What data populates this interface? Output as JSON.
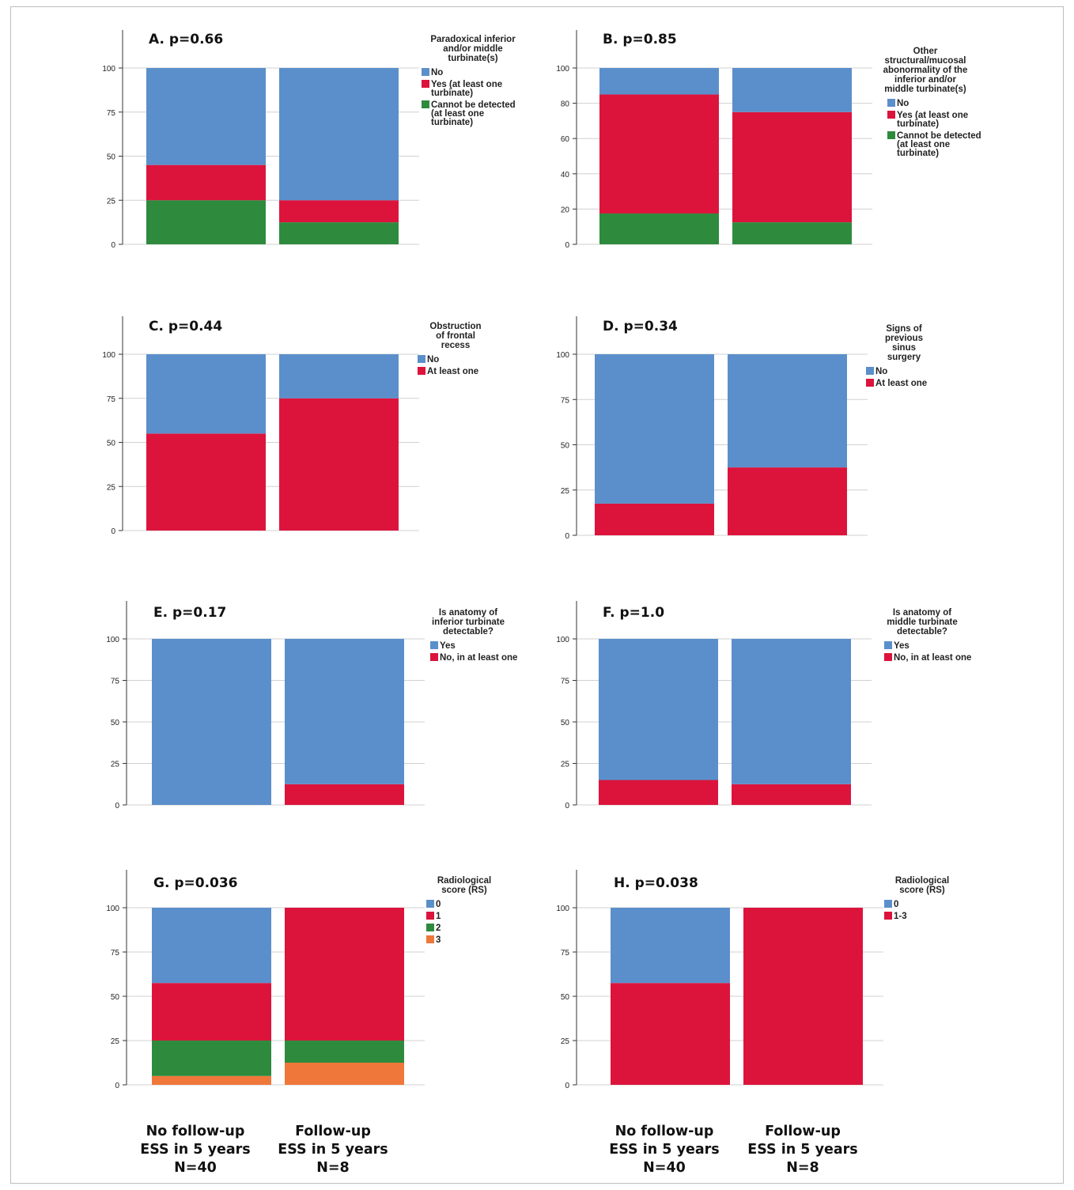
{
  "colors": {
    "blue": "#5b8fcb",
    "red": "#dc143c",
    "green": "#2e8b3e",
    "orange": "#f0773a",
    "grid": "#d0d0d0"
  },
  "categories": [
    {
      "lines": [
        "No follow-up",
        "ESS in 5 years",
        "N=40"
      ]
    },
    {
      "lines": [
        "Follow-up",
        "ESS in 5 years",
        "N=8"
      ]
    }
  ],
  "chart_data": [
    {
      "type": "bar",
      "stacked": true,
      "title": "A. p=0.66",
      "legend_title": [
        "Paradoxical inferior",
        "and/or middle",
        "turbinate(s)"
      ],
      "ylim": [
        0,
        100
      ],
      "yticks": [
        0,
        25,
        50,
        75,
        100
      ],
      "categories": [
        "No follow-up ESS in 5 years N=40",
        "Follow-up ESS in 5 years N=8"
      ],
      "series": [
        {
          "name": "No",
          "legend_lines": [
            "No"
          ],
          "color": "blue",
          "values": [
            55,
            75
          ]
        },
        {
          "name": "Yes (at least one turbinate)",
          "legend_lines": [
            "Yes (at least one",
            "turbinate)"
          ],
          "color": "red",
          "values": [
            20,
            12.5
          ]
        },
        {
          "name": "Cannot be detected (at least one turbinate)",
          "legend_lines": [
            "Cannot be detected",
            "(at least one",
            "turbinate)"
          ],
          "color": "green",
          "values": [
            25,
            12.5
          ]
        }
      ]
    },
    {
      "type": "bar",
      "stacked": true,
      "title": "B. p=0.85",
      "legend_title": [
        "Other",
        "structural/mucosal",
        "abonormality of the",
        "inferior and/or",
        "middle turbinate(s)"
      ],
      "ylim": [
        0,
        100
      ],
      "yticks": [
        0,
        20,
        40,
        60,
        80,
        100
      ],
      "categories": [
        "No follow-up ESS in 5 years N=40",
        "Follow-up ESS in 5 years N=8"
      ],
      "series": [
        {
          "name": "No",
          "legend_lines": [
            "No"
          ],
          "color": "blue",
          "values": [
            15,
            25
          ]
        },
        {
          "name": "Yes (at least one turbinate)",
          "legend_lines": [
            "Yes (at least one",
            "turbinate)"
          ],
          "color": "red",
          "values": [
            67.5,
            62.5
          ]
        },
        {
          "name": "Cannot be detected (at least one turbinate)",
          "legend_lines": [
            "Cannot be detected",
            "(at least one",
            "turbinate)"
          ],
          "color": "green",
          "values": [
            17.5,
            12.5
          ]
        }
      ]
    },
    {
      "type": "bar",
      "stacked": true,
      "title": "C. p=0.44",
      "legend_title": [
        "Obstruction",
        "of frontal",
        "recess"
      ],
      "ylim": [
        0,
        100
      ],
      "yticks": [
        0,
        25,
        50,
        75,
        100
      ],
      "categories": [
        "No follow-up ESS in 5 years N=40",
        "Follow-up ESS in 5 years N=8"
      ],
      "series": [
        {
          "name": "No",
          "legend_lines": [
            "No"
          ],
          "color": "blue",
          "values": [
            45,
            25
          ]
        },
        {
          "name": "At least one",
          "legend_lines": [
            "At least one"
          ],
          "color": "red",
          "values": [
            55,
            75
          ]
        }
      ]
    },
    {
      "type": "bar",
      "stacked": true,
      "title": "D. p=0.34",
      "legend_title": [
        "Signs of",
        "previous",
        "sinus",
        "surgery"
      ],
      "ylim": [
        0,
        110
      ],
      "yticks": [
        0,
        25,
        50,
        75,
        100
      ],
      "categories": [
        "No follow-up ESS in 5 years N=40",
        "Follow-up ESS in 5 years N=8"
      ],
      "series": [
        {
          "name": "No",
          "legend_lines": [
            "No"
          ],
          "color": "blue",
          "values": [
            82.5,
            62.5
          ]
        },
        {
          "name": "At least one",
          "legend_lines": [
            "At least one"
          ],
          "color": "red",
          "values": [
            17.5,
            37.5
          ]
        }
      ]
    },
    {
      "type": "bar",
      "stacked": true,
      "title": "E. p=0.17",
      "legend_title": [
        "Is anatomy of",
        "inferior turbinate",
        "detectable?"
      ],
      "ylim": [
        0,
        100
      ],
      "yticks": [
        0,
        25,
        50,
        75,
        100
      ],
      "categories": [
        "No follow-up ESS in 5 years N=40",
        "Follow-up ESS in 5 years N=8"
      ],
      "series": [
        {
          "name": "Yes",
          "legend_lines": [
            "Yes"
          ],
          "color": "blue",
          "values": [
            100,
            87.5
          ]
        },
        {
          "name": "No, in at least one",
          "legend_lines": [
            "No, in at least one"
          ],
          "color": "red",
          "values": [
            0,
            12.5
          ]
        }
      ]
    },
    {
      "type": "bar",
      "stacked": true,
      "title": "F. p=1.0",
      "legend_title": [
        "Is anatomy of",
        "middle turbinate",
        "detectable?"
      ],
      "ylim": [
        0,
        100
      ],
      "yticks": [
        0,
        25,
        50,
        75,
        100
      ],
      "categories": [
        "No follow-up ESS in 5 years N=40",
        "Follow-up ESS in 5 years N=8"
      ],
      "series": [
        {
          "name": "Yes",
          "legend_lines": [
            "Yes"
          ],
          "color": "blue",
          "values": [
            85,
            87.5
          ]
        },
        {
          "name": "No, in at least one",
          "legend_lines": [
            "No, in at least one"
          ],
          "color": "red",
          "values": [
            15,
            12.5
          ]
        }
      ]
    },
    {
      "type": "bar",
      "stacked": true,
      "title": "G. p=0.036",
      "legend_title": [
        "Radiological",
        "score (RS)"
      ],
      "ylim": [
        0,
        100
      ],
      "yticks": [
        0,
        25,
        50,
        75,
        100
      ],
      "categories": [
        "No follow-up ESS in 5 years N=40",
        "Follow-up ESS in 5 years N=8"
      ],
      "series": [
        {
          "name": "0",
          "legend_lines": [
            "0"
          ],
          "color": "blue",
          "values": [
            42.5,
            0
          ]
        },
        {
          "name": "1",
          "legend_lines": [
            "1"
          ],
          "color": "red",
          "values": [
            32.5,
            75
          ]
        },
        {
          "name": "2",
          "legend_lines": [
            "2"
          ],
          "color": "green",
          "values": [
            20,
            12.5
          ]
        },
        {
          "name": "3",
          "legend_lines": [
            "3"
          ],
          "color": "orange",
          "values": [
            5,
            12.5
          ]
        }
      ]
    },
    {
      "type": "bar",
      "stacked": true,
      "title": "H. p=0.038",
      "legend_title": [
        "Radiological",
        "score (RS)"
      ],
      "ylim": [
        0,
        100
      ],
      "yticks": [
        0,
        25,
        50,
        75,
        100
      ],
      "categories": [
        "No follow-up ESS in 5 years N=40",
        "Follow-up ESS in 5 years N=8"
      ],
      "series": [
        {
          "name": "0",
          "legend_lines": [
            "0"
          ],
          "color": "blue",
          "values": [
            42.5,
            0
          ]
        },
        {
          "name": "1-3",
          "legend_lines": [
            "1-3"
          ],
          "color": "red",
          "values": [
            57.5,
            100
          ]
        }
      ]
    }
  ]
}
